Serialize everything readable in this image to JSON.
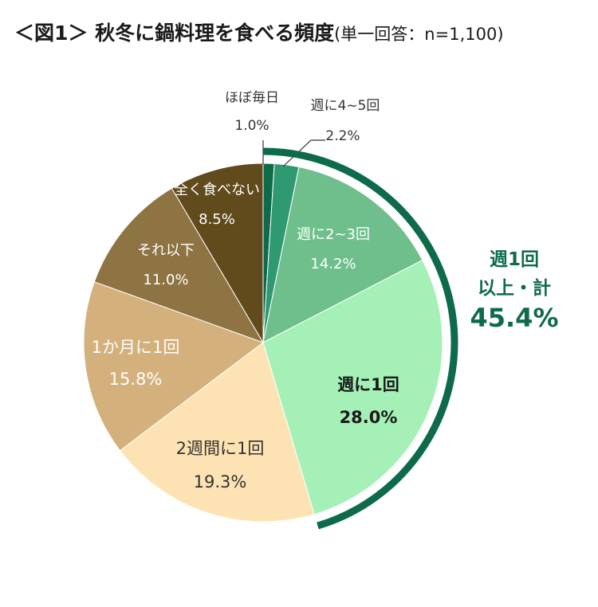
{
  "title": "＜図1＞ 秋冬に鍋料理を食べる頻度",
  "subtitle": "(単一回答：n=1,100)",
  "chart_data": {
    "type": "pie",
    "title": "＜図1＞ 秋冬に鍋料理を食べる頻度",
    "subtitle": "(単一回答：n=1,100)",
    "slices": [
      {
        "label": "ほぼ毎日",
        "value": 1.0,
        "value_label": "1.0%",
        "color": "#0e6b4a"
      },
      {
        "label": "週に4~5回",
        "value": 2.2,
        "value_label": "2.2%",
        "color": "#2f9a72"
      },
      {
        "label": "週に2~3回",
        "value": 14.2,
        "value_label": "14.2%",
        "color": "#6fbf8c"
      },
      {
        "label": "週に1回",
        "value": 28.0,
        "value_label": "28.0%",
        "color": "#a4f0b6"
      },
      {
        "label": "2週間に1回",
        "value": 19.3,
        "value_label": "19.3%",
        "color": "#fde3b3"
      },
      {
        "label": "1か月に1回",
        "value": 15.8,
        "value_label": "15.8%",
        "color": "#d3b07c"
      },
      {
        "label": "それ以下",
        "value": 11.0,
        "value_label": "11.0%",
        "color": "#8e7343"
      },
      {
        "label": "全く食べない",
        "value": 8.5,
        "value_label": "8.5%",
        "color": "#614a1c"
      }
    ],
    "start": "12 o'clock",
    "direction": "clockwise",
    "bracket": {
      "line1": "週1回",
      "line2": "以上・計",
      "value": "45.4%",
      "color": "#0e6b4a",
      "covers": [
        "ほぼ毎日",
        "週に4~5回",
        "週に2~3回",
        "週に1回"
      ]
    }
  }
}
